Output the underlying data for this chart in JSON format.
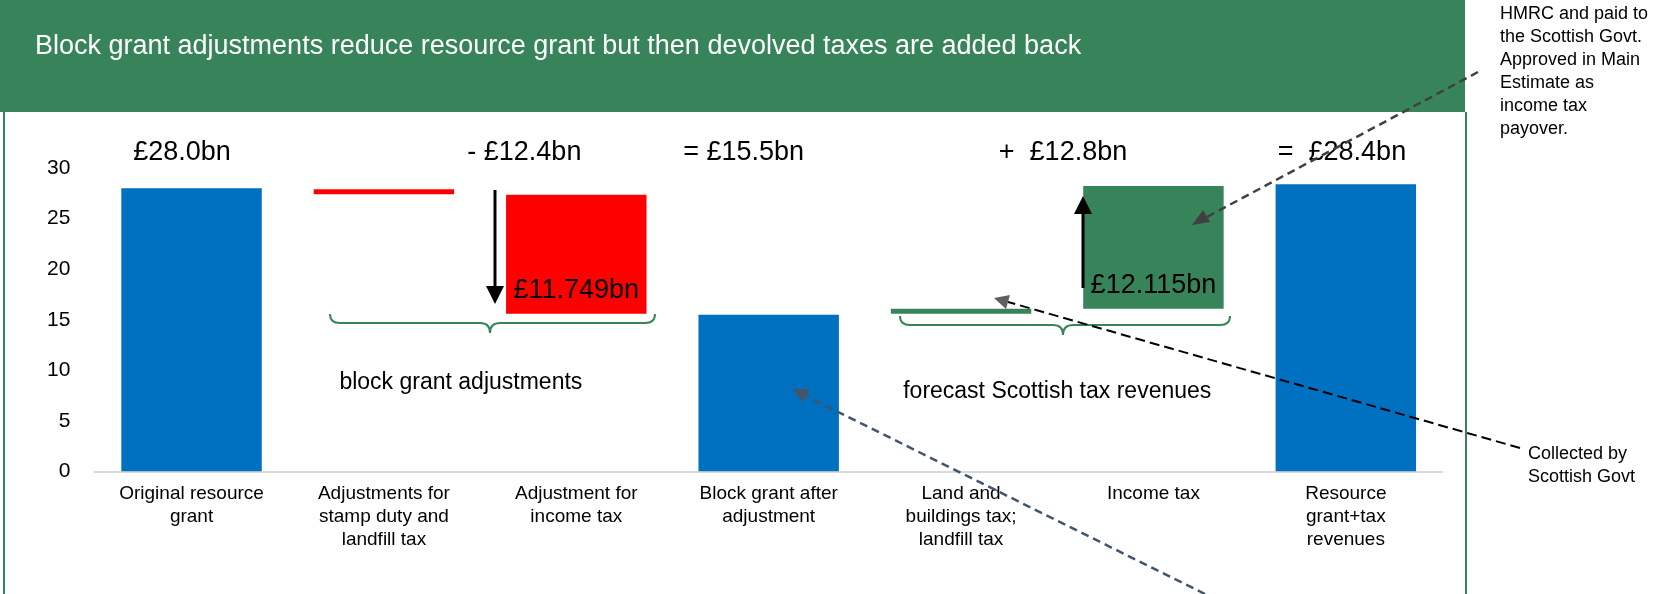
{
  "chart_data": {
    "type": "bar",
    "title": "Block grant adjustments reduce resource grant but then devolved taxes are added back",
    "categories": [
      "Original resource grant",
      "Adjustments for stamp duty and landfill tax",
      "Adjustment for income tax",
      "Block grant after adjustment",
      "Land and buildings tax; landfill tax",
      "Income tax",
      "Resource grant+tax revenues"
    ],
    "values": [
      28.0,
      0.5,
      11.749,
      15.5,
      0.5,
      12.115,
      28.4
    ],
    "base": [
      0,
      27.4,
      15.6,
      0,
      15.6,
      16.1,
      0
    ],
    "colors": [
      "#0070c0",
      "#ff0000",
      "#ff0000",
      "#0070c0",
      "#38845a",
      "#38845a",
      "#0070c0"
    ],
    "value_labels": [
      null,
      null,
      "£11.749bn",
      null,
      null,
      "£12.115bn",
      null
    ],
    "ylim": [
      0,
      30
    ],
    "yticks": [
      0,
      5,
      10,
      15,
      20,
      25,
      30
    ],
    "grid": false,
    "annotations": [
      "£28.0bn",
      "- £12.4bn",
      "= £15.5bn",
      "+  £12.8bn",
      "=  £28.4bn",
      "block grant adjustments",
      "forecast Scottish tax revenues",
      "HMRC and paid to the Scottish Govt.  Approved in Main Estimate as income tax payover.",
      "Collected by Scottish Govt"
    ]
  }
}
